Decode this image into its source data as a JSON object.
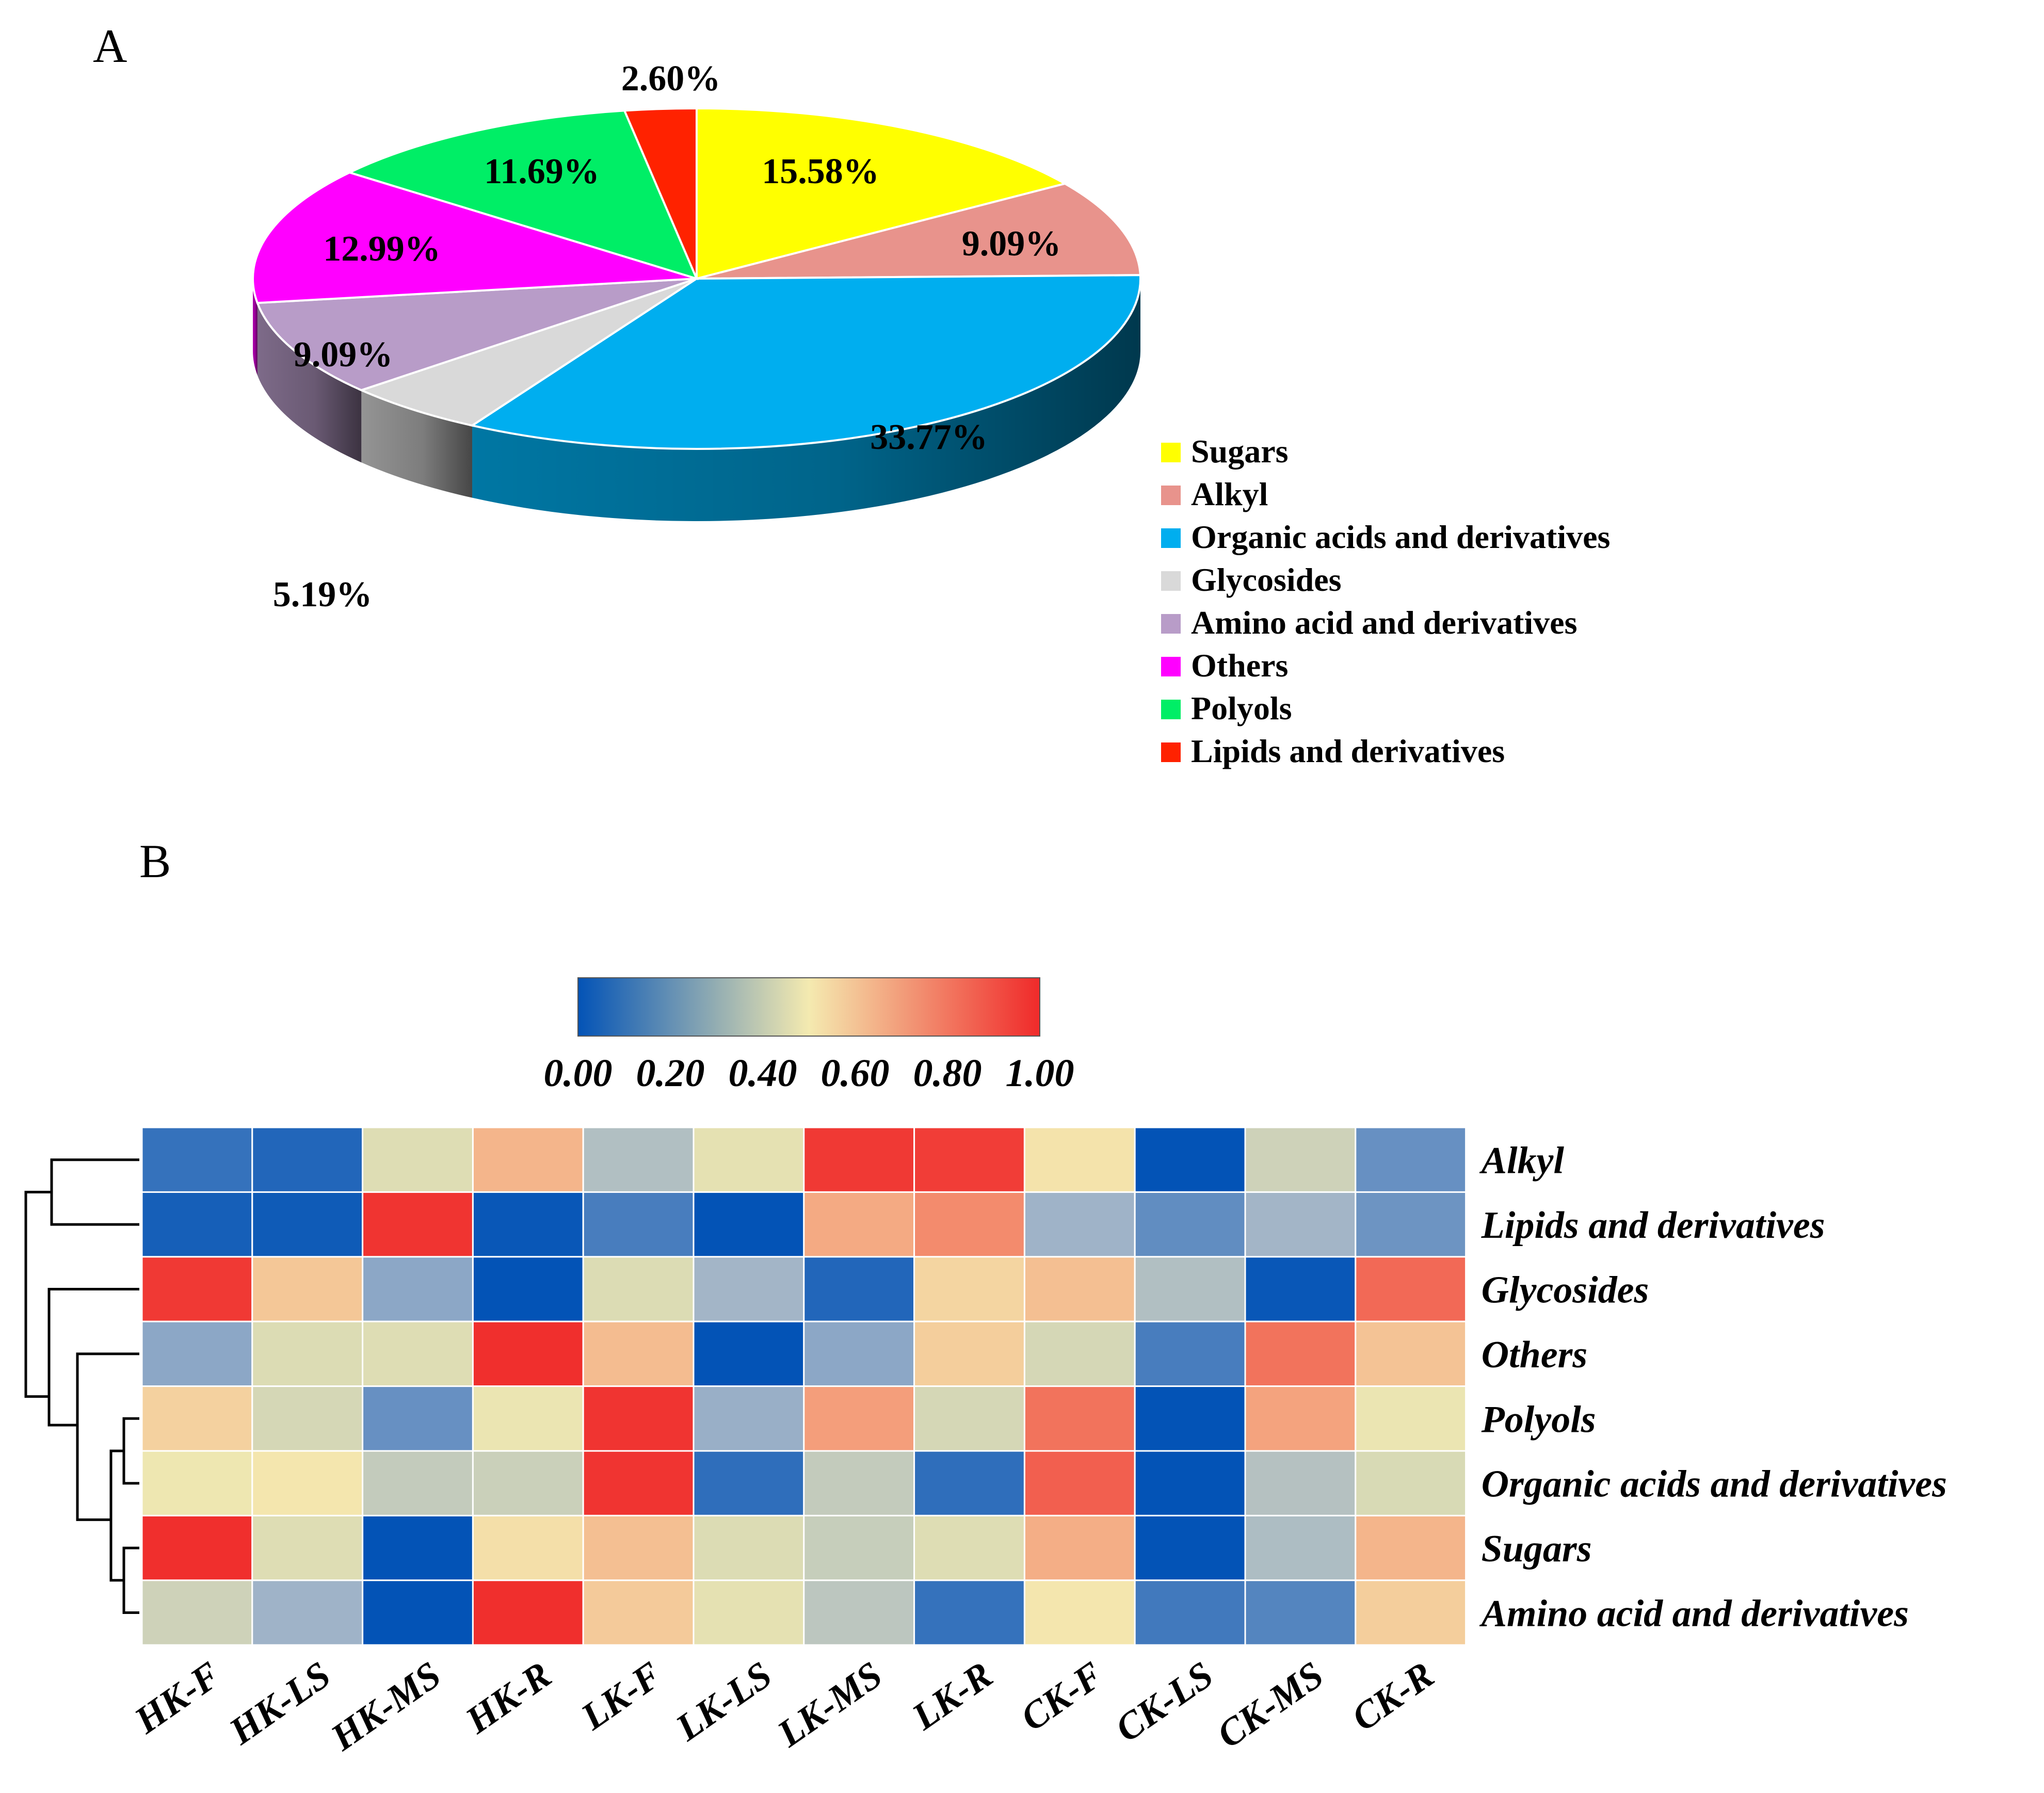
{
  "panels": {
    "a": "A",
    "b": "B"
  },
  "chart_data": [
    {
      "type": "pie",
      "panel": "A",
      "style": "3d-exploded-none",
      "slices": [
        {
          "name": "Sugars",
          "value": 15.58,
          "label": "15.58%",
          "color": "#ffff00"
        },
        {
          "name": "Alkyl",
          "value": 9.09,
          "label": "9.09%",
          "color": "#e8938c"
        },
        {
          "name": "Organic acids and derivatives",
          "value": 33.77,
          "label": "33.77%",
          "color": "#00aeef"
        },
        {
          "name": "Glycosides",
          "value": 5.19,
          "label": "5.19%",
          "color": "#d9d9d9"
        },
        {
          "name": "Amino acid and derivatives",
          "value": 9.09,
          "label": "9.09%",
          "color": "#b89cc8"
        },
        {
          "name": "Others",
          "value": 12.99,
          "label": "12.99%",
          "color": "#ff00ff"
        },
        {
          "name": "Polyols",
          "value": 11.69,
          "label": "11.69%",
          "color": "#00ee66"
        },
        {
          "name": "Lipids and derivatives",
          "value": 2.6,
          "label": "2.60%",
          "color": "#ff2200"
        }
      ],
      "legend": [
        "Sugars",
        "Alkyl",
        "Organic acids and derivatives",
        "Glycosides",
        "Amino acid and derivatives",
        "Others",
        "Polyols",
        "Lipids and derivatives"
      ],
      "legend_position": "right"
    },
    {
      "type": "heatmap",
      "panel": "B",
      "rows": [
        "Alkyl",
        "Lipids and derivatives",
        "Glycosides",
        "Others",
        "Polyols",
        "Organic acids and derivatives",
        "Sugars",
        "Amino acid and derivatives"
      ],
      "columns": [
        "HK-F",
        "HK-LS",
        "HK-MS",
        "HK-R",
        "LK-F",
        "LK-LS",
        "LK-MS",
        "LK-R",
        "CK-F",
        "CK-LS",
        "CK-MS",
        "CK-R"
      ],
      "values": [
        [
          0.08,
          0.05,
          0.43,
          0.7,
          0.3,
          0.47,
          0.97,
          0.96,
          0.57,
          0.0,
          0.38,
          0.16
        ],
        [
          0.03,
          0.02,
          0.98,
          0.01,
          0.11,
          0.0,
          0.73,
          0.8,
          0.25,
          0.15,
          0.26,
          0.17
        ],
        [
          0.97,
          0.65,
          0.22,
          0.0,
          0.42,
          0.26,
          0.05,
          0.61,
          0.67,
          0.3,
          0.01,
          0.87
        ],
        [
          0.22,
          0.42,
          0.43,
          0.99,
          0.68,
          0.0,
          0.22,
          0.63,
          0.4,
          0.11,
          0.85,
          0.66
        ],
        [
          0.62,
          0.4,
          0.16,
          0.5,
          0.98,
          0.24,
          0.76,
          0.4,
          0.85,
          0.0,
          0.75,
          0.5
        ],
        [
          0.52,
          0.56,
          0.35,
          0.37,
          0.98,
          0.07,
          0.35,
          0.07,
          0.89,
          0.0,
          0.31,
          0.41
        ],
        [
          0.99,
          0.43,
          0.0,
          0.58,
          0.67,
          0.42,
          0.36,
          0.43,
          0.72,
          0.0,
          0.29,
          0.7
        ],
        [
          0.38,
          0.25,
          0.0,
          0.99,
          0.64,
          0.47,
          0.33,
          0.08,
          0.56,
          0.1,
          0.13,
          0.63
        ]
      ],
      "colorbar": {
        "range": [
          0.0,
          1.0
        ],
        "ticks": [
          "0.00",
          "0.20",
          "0.40",
          "0.60",
          "0.80",
          "1.00"
        ],
        "colors": [
          "#0353b6",
          "#f4eab0",
          "#f02a2a"
        ],
        "position": "top-center"
      },
      "row_dendrogram": {
        "position": "left",
        "tree": [
          [
            [
              "Alkyl",
              "Lipids and derivatives"
            ]
          ],
          [
            [
              "Glycosides"
            ],
            [
              "Others",
              [
                [
                  [
                    "Polyols",
                    "Organic acids and derivatives"
                  ]
                ],
                [
                  "Sugars",
                  "Amino acid and derivatives"
                ]
              ]
            ]
          ]
        ]
      }
    }
  ]
}
